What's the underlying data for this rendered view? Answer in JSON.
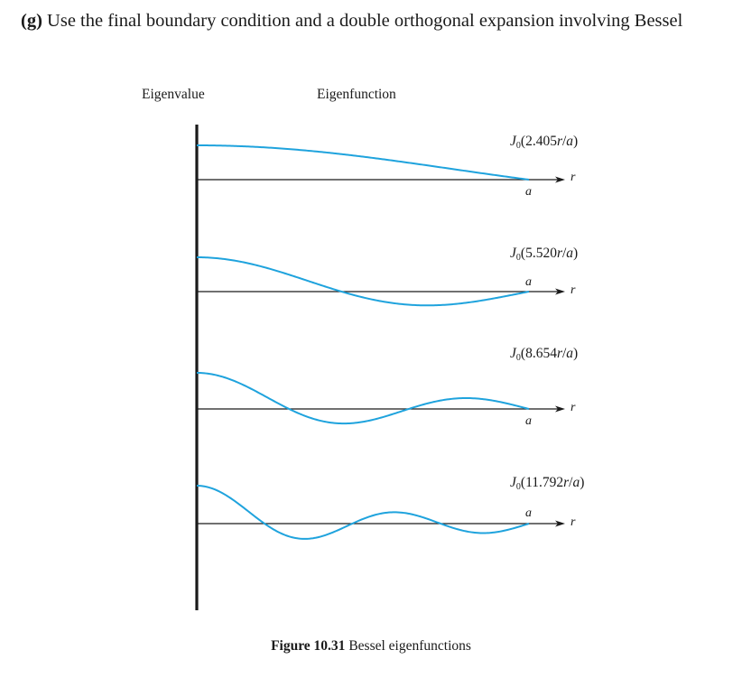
{
  "heading": {
    "part": "(g)",
    "text": "Use the final boundary condition and a double orthogonal expansion involving Bessel"
  },
  "columns": {
    "eigenvalue": "Eigenvalue",
    "eigenfunction": "Eigenfunction"
  },
  "axis": {
    "r_label": "r",
    "a_label": "a"
  },
  "functions": [
    {
      "prefix": "J",
      "sub": "0",
      "open": "(",
      "coef": "2.405",
      "var": "r",
      "slash": "/",
      "den": "a",
      "close": ")"
    },
    {
      "prefix": "J",
      "sub": "0",
      "open": "(",
      "coef": "5.520",
      "var": "r",
      "slash": "/",
      "den": "a",
      "close": ")"
    },
    {
      "prefix": "J",
      "sub": "0",
      "open": "(",
      "coef": "8.654",
      "var": "r",
      "slash": "/",
      "den": "a",
      "close": ")"
    },
    {
      "prefix": "J",
      "sub": "0",
      "open": "(",
      "coef": "11.792",
      "var": "r",
      "slash": "/",
      "den": "a",
      "close": ")"
    }
  ],
  "colors": {
    "curve": "#1fa3dd",
    "axis": "#1a1a1a"
  },
  "caption": {
    "number": "Figure 10.31",
    "text": "Bessel eigenfunctions"
  }
}
